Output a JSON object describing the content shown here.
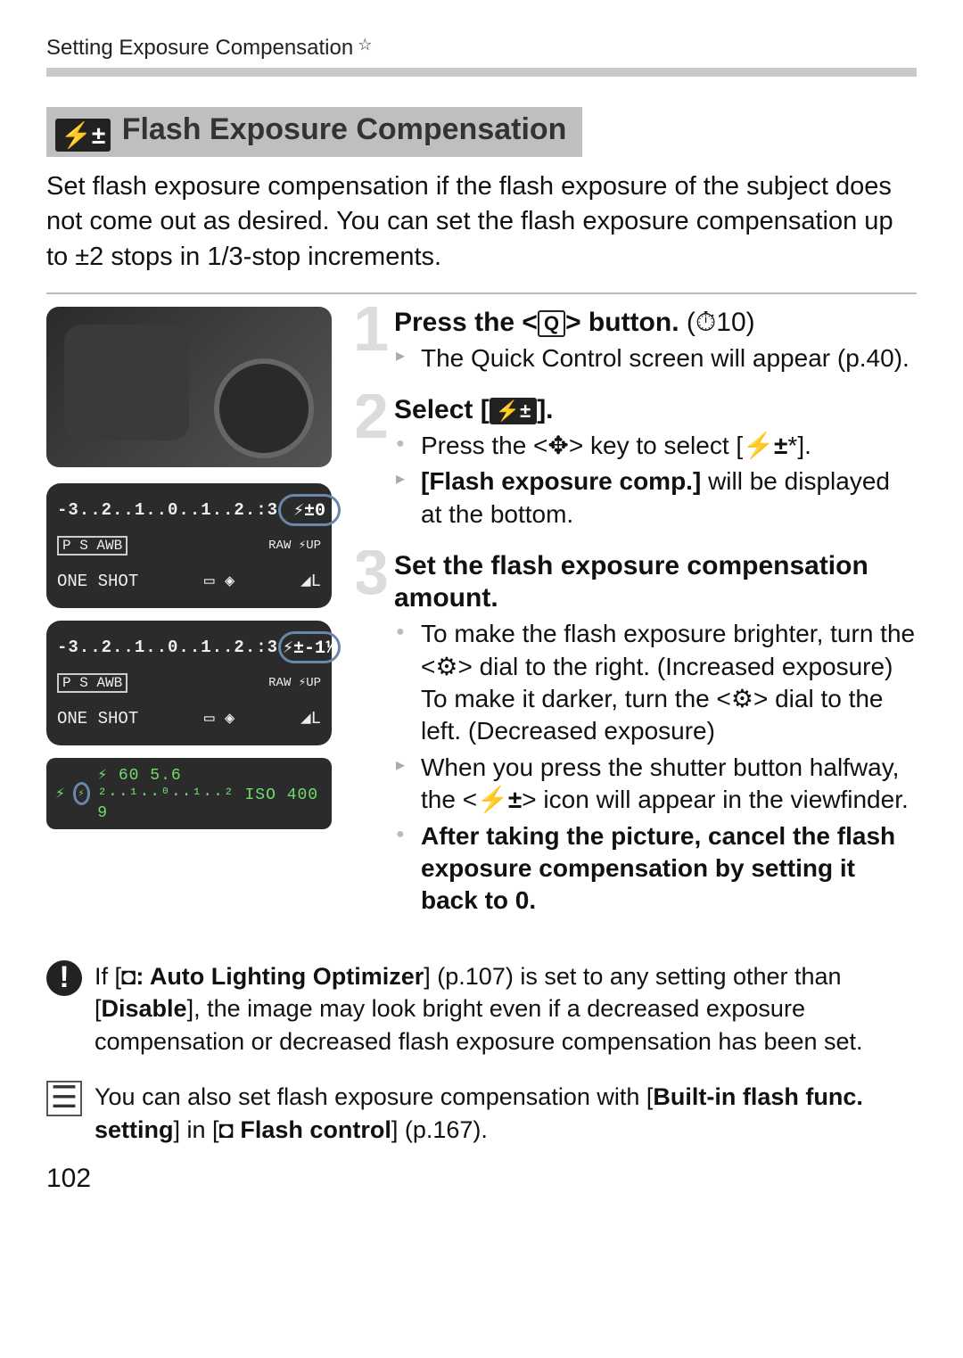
{
  "running_header": "Setting Exposure Compensation",
  "section": {
    "icon": "⚡±",
    "title": "Flash Exposure Compensation"
  },
  "intro": "Set flash exposure compensation if the flash exposure of the subject does not come out as desired. You can set the flash exposure compensation up to ±2 stops in 1/3-stop increments.",
  "lcd1": {
    "scale": "-3..2..1..0..1..2.:3",
    "pill": "⚡±0",
    "row2_left": "P S  AWB",
    "row2_right": "RAW  ⚡UP",
    "row3_left": "ONE SHOT",
    "row3_icons": "▭   ◈",
    "row3_right": "◢L"
  },
  "lcd2": {
    "scale": "-3..2..1..0..1..2.:3",
    "pill": "⚡±-1⅓",
    "row2_left": "P S  AWB",
    "row2_right": "RAW  ⚡UP",
    "row3_left": "ONE SHOT",
    "row3_icons": "▭   ◈",
    "row3_right": "◢L"
  },
  "viewfinder": "⚡  60  5.6 ²··¹··⁰··¹··² ISO  400   9",
  "steps": [
    {
      "num": "1",
      "title_pre": "Press the <",
      "title_icon": "Q",
      "title_post": "> button.",
      "title_tail": " (⏱10)",
      "items": [
        {
          "type": "arrow",
          "text": "The Quick Control screen will appear (p.40)."
        }
      ]
    },
    {
      "num": "2",
      "title_pre": "Select [",
      "title_icon": "⚡±",
      "title_post": "].",
      "items": [
        {
          "type": "dot",
          "html": "Press the <✥> key to select [<b>⚡±</b>*]."
        },
        {
          "type": "arrow",
          "html": "<b>[Flash exposure comp.]</b> will be displayed at the bottom."
        }
      ]
    },
    {
      "num": "3",
      "title_full": "Set the flash exposure compensation amount.",
      "items": [
        {
          "type": "dot",
          "html": "To make the flash exposure brighter, turn the <⚙> dial to the right. (Increased exposure)<br>To make it darker, turn the <⚙> dial to the left. (Decreased exposure)"
        },
        {
          "type": "arrow",
          "html": "When you press the shutter button halfway, the <<b>⚡±</b>> icon will appear in the viewfinder."
        },
        {
          "type": "dot",
          "html": "<b>After taking the picture, cancel the flash exposure compensation by setting it back to 0.</b>"
        }
      ]
    }
  ],
  "note1": {
    "icon": "!",
    "html": "If [<b>◘: Auto Lighting Optimizer</b>] (p.107) is set to any setting other than [<b>Disable</b>], the image may look bright even if a decreased exposure compensation or decreased flash exposure compensation has been set."
  },
  "note2": {
    "icon": "☰",
    "html": "You can also set flash exposure compensation with [<b>Built-in flash func. setting</b>] in [<b>◘ Flash control</b>] (p.167)."
  },
  "page_number": "102"
}
